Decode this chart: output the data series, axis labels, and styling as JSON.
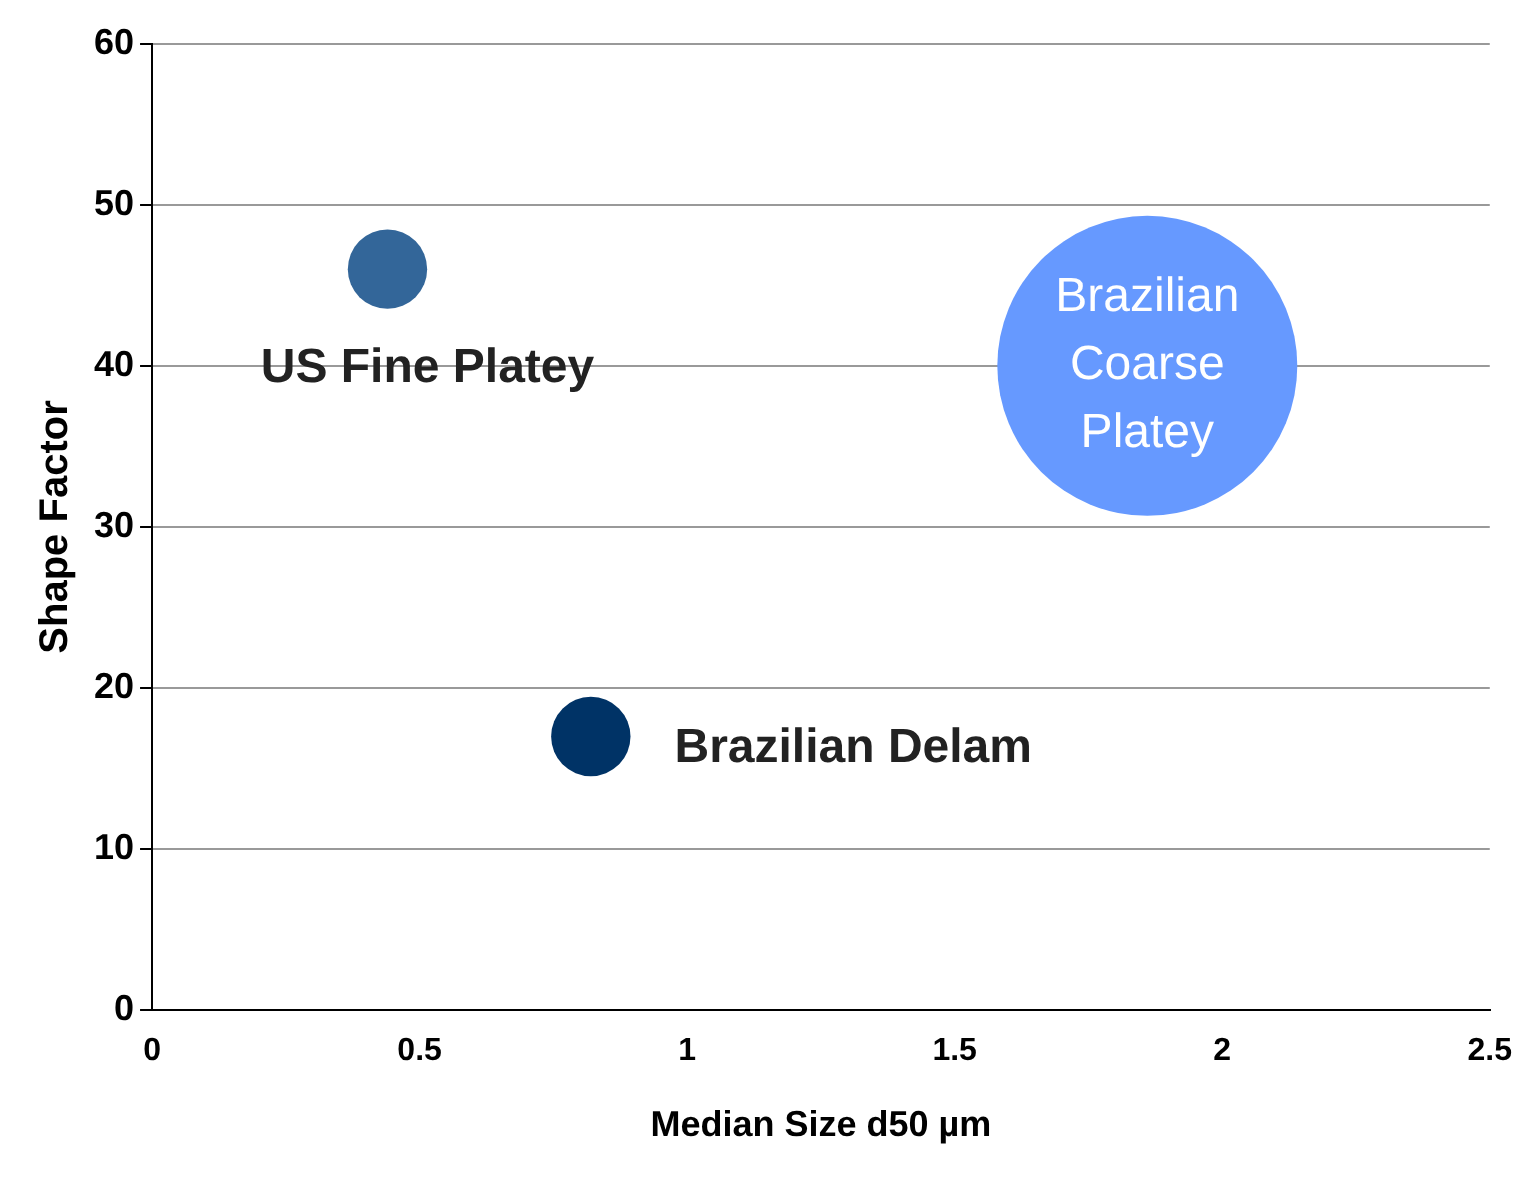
{
  "chart_data": {
    "type": "bubble",
    "xlabel": "Median Size d50 µm",
    "ylabel": "Shape Factor",
    "series": [
      {
        "name": "US Fine Platey",
        "color": "#336699",
        "x": [
          0.44
        ],
        "values": [
          46
        ],
        "sizes": [
          0.07
        ]
      },
      {
        "name": "Brazilian Delam",
        "color": "#003366",
        "x": [
          0.82
        ],
        "values": [
          17
        ],
        "sizes": [
          0.07
        ]
      },
      {
        "name": "Brazilian Coarse Platey",
        "color": "#6699ff",
        "x": [
          1.86
        ],
        "values": [
          40
        ],
        "sizes": [
          1
        ]
      }
    ],
    "xlim": [
      0,
      2.5
    ],
    "xticks": [
      0,
      0.5,
      1,
      1.5,
      2,
      2.5
    ],
    "ylim": [
      0,
      60
    ],
    "yticks": [
      0,
      10,
      20,
      30,
      40,
      50,
      60
    ],
    "grid": "y"
  }
}
